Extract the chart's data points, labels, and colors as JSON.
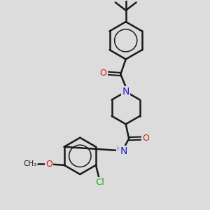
{
  "bg_color": "#dcdcdc",
  "bond_color": "#1a1a1a",
  "bond_width": 1.8,
  "N_color": "#2222cc",
  "O_color": "#cc2200",
  "Cl_color": "#22aa22",
  "figsize": [
    3.0,
    3.0
  ],
  "dpi": 100,
  "xlim": [
    0,
    10
  ],
  "ylim": [
    0,
    10
  ]
}
